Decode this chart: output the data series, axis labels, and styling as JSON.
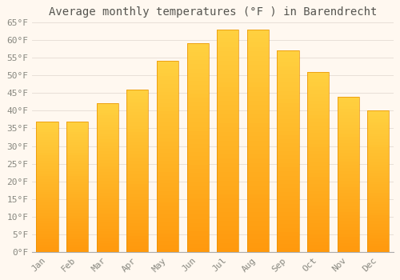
{
  "title": "Average monthly temperatures (°F ) in Barendrecht",
  "months": [
    "Jan",
    "Feb",
    "Mar",
    "Apr",
    "May",
    "Jun",
    "Jul",
    "Aug",
    "Sep",
    "Oct",
    "Nov",
    "Dec"
  ],
  "values": [
    37,
    37,
    42,
    46,
    54,
    59,
    63,
    63,
    57,
    51,
    44,
    40
  ],
  "bar_color_top": "#FFB020",
  "bar_color_bottom": "#FFA000",
  "bar_color_face": "#FFB733",
  "bar_color_edge": "#E89000",
  "background_color": "#FFF8F0",
  "plot_bg_color": "#FFF8F0",
  "grid_color": "#E8E0D8",
  "tick_label_color": "#888880",
  "title_color": "#555550",
  "ylim": [
    0,
    65
  ],
  "yticks": [
    0,
    5,
    10,
    15,
    20,
    25,
    30,
    35,
    40,
    45,
    50,
    55,
    60,
    65
  ],
  "ytick_labels": [
    "0°F",
    "5°F",
    "10°F",
    "15°F",
    "20°F",
    "25°F",
    "30°F",
    "35°F",
    "40°F",
    "45°F",
    "50°F",
    "55°F",
    "60°F",
    "65°F"
  ],
  "title_fontsize": 10,
  "tick_fontsize": 8,
  "font_family": "monospace",
  "bar_width": 0.72
}
